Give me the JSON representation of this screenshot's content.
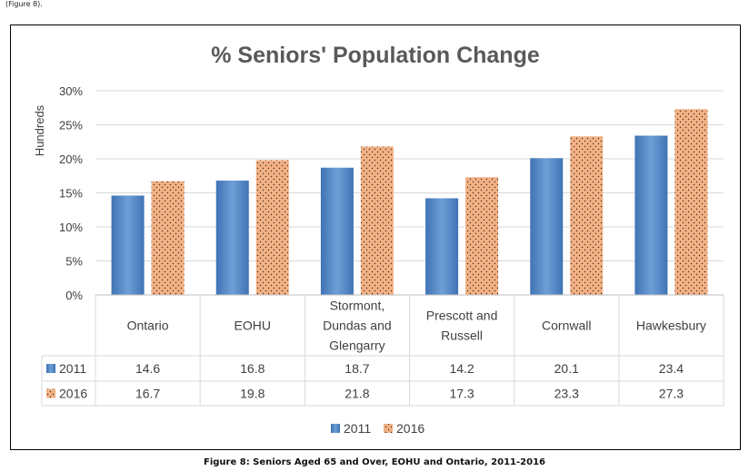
{
  "top_caption": "(Figure 8).",
  "figure_caption": "Figure 8: Seniors Aged 65 and Over, EOHU and Ontario, 2011-2016",
  "chart_data": {
    "type": "bar",
    "title": "% Seniors' Population Change",
    "ylabel": "Hundreds",
    "xlabel": "",
    "ylim": [
      0,
      30
    ],
    "yticks": [
      "0%",
      "5%",
      "10%",
      "15%",
      "20%",
      "25%",
      "30%"
    ],
    "grid": true,
    "legend": "bottom",
    "categories": [
      [
        "Ontario"
      ],
      [
        "EOHU"
      ],
      [
        "Stormont,",
        "Dundas and",
        "Glengarry"
      ],
      [
        "Prescott and",
        "Russell"
      ],
      [
        "Cornwall"
      ],
      [
        "Hawkesbury"
      ]
    ],
    "series": [
      {
        "name": "2011",
        "values": [
          14.6,
          16.8,
          18.7,
          14.2,
          20.1,
          23.4
        ],
        "color": "#5b8fc9"
      },
      {
        "name": "2016",
        "values": [
          16.7,
          19.8,
          21.8,
          17.3,
          23.3,
          27.3
        ],
        "color": "#f4b183"
      }
    ],
    "data_table": {
      "rows": [
        {
          "label": "2011",
          "cells": [
            "14.6",
            "16.8",
            "18.7",
            "14.2",
            "20.1",
            "23.4"
          ]
        },
        {
          "label": "2016",
          "cells": [
            "16.7",
            "19.8",
            "21.8",
            "17.3",
            "23.3",
            "27.3"
          ]
        }
      ]
    }
  }
}
